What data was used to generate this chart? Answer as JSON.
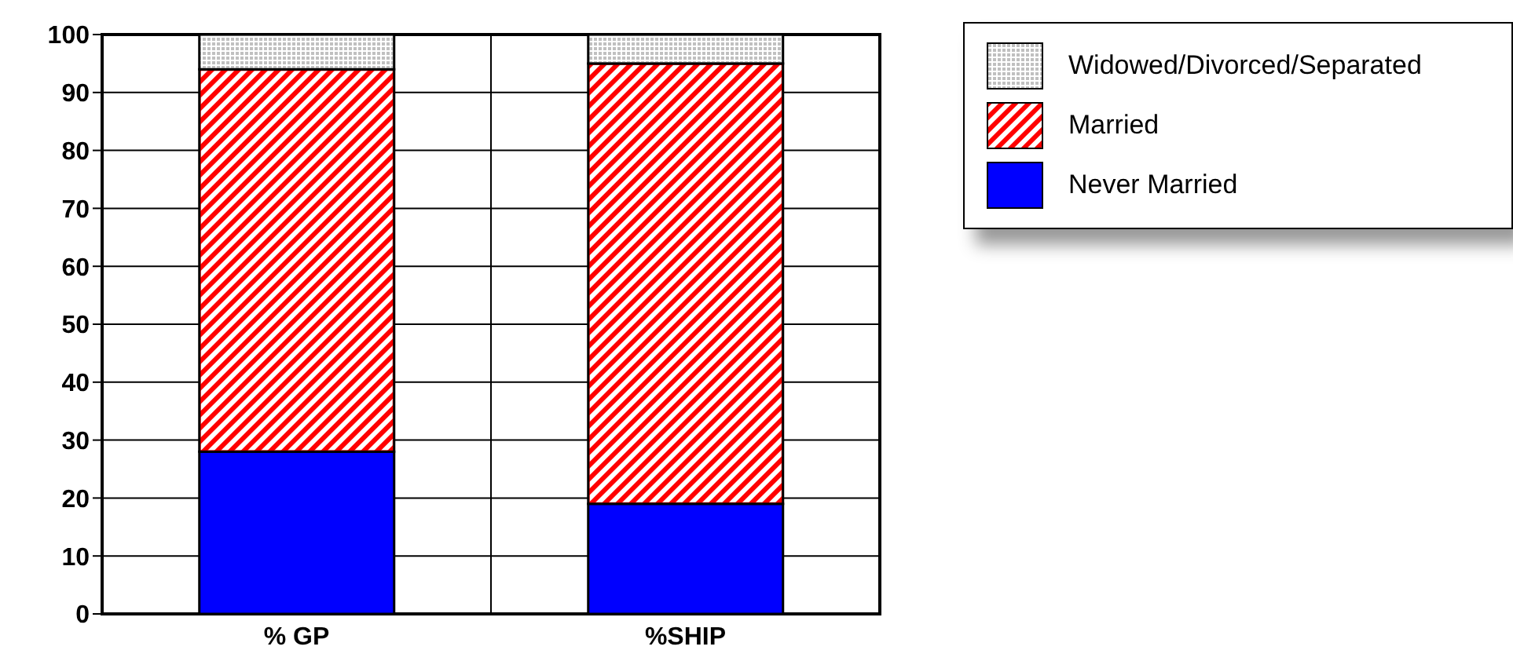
{
  "chart_data": {
    "type": "bar",
    "stacked": true,
    "categories": [
      "% GP",
      "%SHIP"
    ],
    "series": [
      {
        "name": "Never Married",
        "color": "#0000ff",
        "values": [
          28,
          19
        ]
      },
      {
        "name": "Married",
        "color": "#ff0000",
        "values": [
          66,
          76
        ]
      },
      {
        "name": "Widowed/Divorced/Separated",
        "color": "#c0c0c0",
        "values": [
          6,
          5
        ]
      }
    ],
    "ylim": [
      0,
      100
    ],
    "yticks": [
      0,
      10,
      20,
      30,
      40,
      50,
      60,
      70,
      80,
      90,
      100
    ],
    "grid": true,
    "legend": "top right"
  }
}
